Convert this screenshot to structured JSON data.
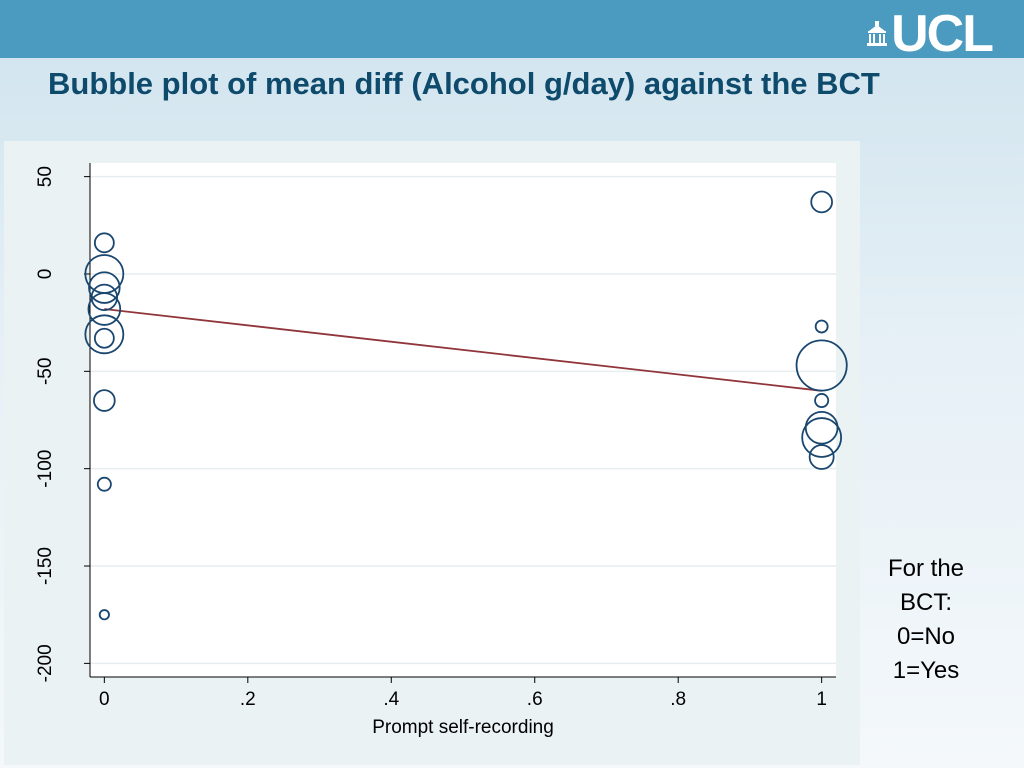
{
  "header": {
    "logo_text": "UCL",
    "title": "Bubble plot of mean diff (Alcohol g/day) against the BCT"
  },
  "side_note": {
    "lines": [
      "For the",
      "BCT:",
      "0=No",
      "1=Yes"
    ]
  },
  "chart_data": {
    "type": "scatter",
    "title": "",
    "xlabel": "Prompt self-recording",
    "ylabel": "",
    "xlim": [
      -0.02,
      1.02
    ],
    "ylim": [
      -207,
      57
    ],
    "x_ticks": [
      0,
      0.2,
      0.4,
      0.6,
      0.8,
      1
    ],
    "x_tick_labels": [
      "0",
      ".2",
      ".4",
      ".6",
      ".8",
      "1"
    ],
    "y_ticks": [
      50,
      0,
      -50,
      -100,
      -150,
      -200
    ],
    "y_tick_labels": [
      "50",
      "0",
      "-50",
      "-100",
      "-150",
      "-200"
    ],
    "grid": true,
    "bubble_color": "#1a476f",
    "fit_color": "#90353b",
    "points": [
      {
        "x": 0,
        "y": 16,
        "size": 0.25
      },
      {
        "x": 0,
        "y": 0,
        "size": 1.0
      },
      {
        "x": 0,
        "y": -7,
        "size": 0.65
      },
      {
        "x": 0,
        "y": -12,
        "size": 0.45
      },
      {
        "x": 0,
        "y": -18,
        "size": 0.7
      },
      {
        "x": 0,
        "y": -31,
        "size": 1.0
      },
      {
        "x": 0,
        "y": -33,
        "size": 0.25
      },
      {
        "x": 0,
        "y": -65,
        "size": 0.3
      },
      {
        "x": 0,
        "y": -108,
        "size": 0.12
      },
      {
        "x": 0,
        "y": -175,
        "size": 0.06
      },
      {
        "x": 1,
        "y": 37,
        "size": 0.3
      },
      {
        "x": 1,
        "y": -27,
        "size": 0.1
      },
      {
        "x": 1,
        "y": -47,
        "size": 1.75
      },
      {
        "x": 1,
        "y": -65,
        "size": 0.12
      },
      {
        "x": 1,
        "y": -79,
        "size": 0.7
      },
      {
        "x": 1,
        "y": -84,
        "size": 1.05
      },
      {
        "x": 1,
        "y": -94,
        "size": 0.4
      }
    ],
    "fit_line": {
      "x": [
        0,
        1
      ],
      "y": [
        -18,
        -60
      ]
    }
  }
}
